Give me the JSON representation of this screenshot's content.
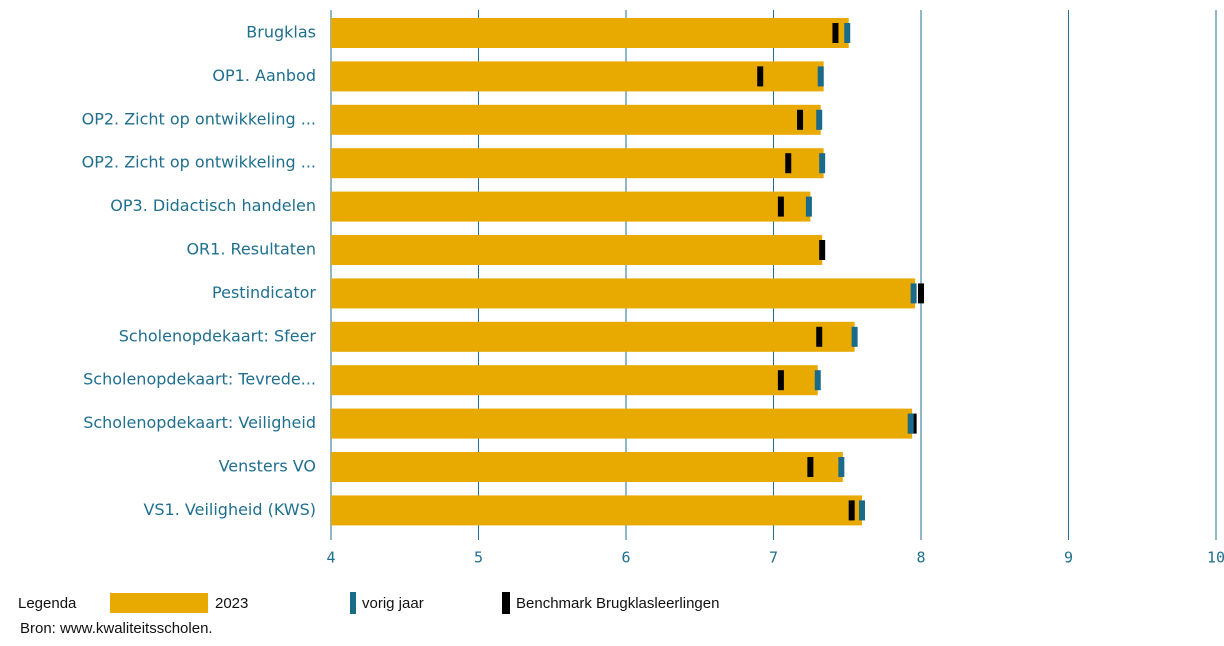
{
  "chart_data": {
    "type": "bar",
    "categories": [
      "Brugklas",
      "OP1. Aanbod",
      "OP2. Zicht op ontwikkeling ...",
      "OP2. Zicht op ontwikkeling ...",
      "OP3. Didactisch handelen",
      "OR1. Resultaten",
      "Pestindicator",
      "Scholenopdekaart: Sfeer",
      "Scholenopdekaart: Tevrede...",
      "Scholenopdekaart: Veiligheid",
      "Vensters VO",
      "VS1. Veiligheid (KWS)"
    ],
    "series": [
      {
        "name": "2023",
        "color": "#e8a900",
        "values": [
          7.51,
          7.34,
          7.32,
          7.34,
          7.25,
          7.33,
          7.96,
          7.55,
          7.3,
          7.94,
          7.47,
          7.6
        ]
      },
      {
        "name": "vorig jaar",
        "color": "#1a6a8a",
        "values": [
          7.5,
          7.32,
          7.31,
          7.33,
          7.24,
          null,
          7.95,
          7.55,
          7.3,
          7.93,
          7.46,
          7.6
        ]
      },
      {
        "name": "Benchmark Brugklasleerlingen",
        "color": "#000000",
        "values": [
          7.42,
          6.91,
          7.18,
          7.1,
          7.05,
          7.33,
          8.0,
          7.31,
          7.05,
          7.95,
          7.25,
          7.53
        ]
      }
    ],
    "xlim": [
      4,
      10
    ],
    "xticks": [
      4,
      5,
      6,
      7,
      8,
      9,
      10
    ],
    "grid": true,
    "legend_title": "Legenda",
    "source": "Bron: www.kwaliteitsscholen."
  }
}
